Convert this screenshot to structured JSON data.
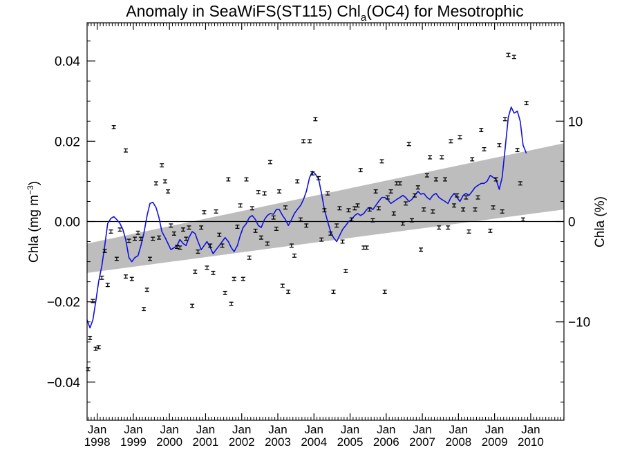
{
  "chart_data": {
    "type": "scatter",
    "title_main": "Anomaly in SeaWiFS(ST115) Chl",
    "title_sub": "a",
    "title_tail": "(OC4) for Mesotrophic",
    "ylabel_left_main": "Chla (mg m",
    "ylabel_left_sup": "−3",
    "ylabel_left_close": ")",
    "ylabel_right": "Chla (%)",
    "xlim": [
      1997.72,
      2010.92
    ],
    "ylim": [
      -0.0495,
      0.0495
    ],
    "ylim_right": [
      -19.8,
      19.8
    ],
    "x_ticks": [
      {
        "month": "Jan",
        "year": "1998",
        "x": 1998.0
      },
      {
        "month": "Jan",
        "year": "1999",
        "x": 1999.0
      },
      {
        "month": "Jan",
        "year": "2000",
        "x": 2000.0
      },
      {
        "month": "Jan",
        "year": "2001",
        "x": 2001.0
      },
      {
        "month": "Jan",
        "year": "2002",
        "x": 2002.0
      },
      {
        "month": "Jan",
        "year": "2003",
        "x": 2003.0
      },
      {
        "month": "Jan",
        "year": "2004",
        "x": 2004.0
      },
      {
        "month": "Jan",
        "year": "2005",
        "x": 2005.0
      },
      {
        "month": "Jan",
        "year": "2006",
        "x": 2006.0
      },
      {
        "month": "Jan",
        "year": "2007",
        "x": 2007.0
      },
      {
        "month": "Jan",
        "year": "2008",
        "x": 2008.0
      },
      {
        "month": "Jan",
        "year": "2009",
        "x": 2009.0
      },
      {
        "month": "Jan",
        "year": "2010",
        "x": 2010.0
      }
    ],
    "y_ticks": [
      {
        "label": "−0.04",
        "y": -0.04
      },
      {
        "label": "−0.02",
        "y": -0.02
      },
      {
        "label": "0.00",
        "y": 0.0
      },
      {
        "label": "0.02",
        "y": 0.02
      },
      {
        "label": "0.04",
        "y": 0.04
      }
    ],
    "y_ticks_right": [
      {
        "label": "−10",
        "y": -10
      },
      {
        "label": "0",
        "y": 0
      },
      {
        "label": "10",
        "y": 10
      }
    ],
    "zero_line": 0.0,
    "trend_band": {
      "x": [
        1997.72,
        2010.92
      ],
      "lower": [
        -0.0128,
        0.003
      ],
      "upper": [
        -0.0055,
        0.0195
      ],
      "color": "#bdbdbd"
    },
    "points_color": "#000000",
    "points_error": 0.0004,
    "points": [
      [
        1997.75,
        -0.0368
      ],
      [
        1997.8,
        -0.029
      ],
      [
        1997.88,
        -0.0198
      ],
      [
        1997.96,
        -0.0317
      ],
      [
        1998.04,
        -0.0313
      ],
      [
        1998.13,
        -0.014
      ],
      [
        1998.21,
        -0.0073
      ],
      [
        1998.29,
        -0.0158
      ],
      [
        1998.38,
        -0.0025
      ],
      [
        1998.46,
        0.0235
      ],
      [
        1998.54,
        -0.0093
      ],
      [
        1998.63,
        -0.002
      ],
      [
        1998.79,
        0.0177
      ],
      [
        1998.79,
        -0.0137
      ],
      [
        1998.88,
        -0.0048
      ],
      [
        1998.96,
        -0.0143
      ],
      [
        1999.04,
        -0.0043
      ],
      [
        1999.13,
        -0.0028
      ],
      [
        1999.21,
        -0.0043
      ],
      [
        1999.29,
        -0.0218
      ],
      [
        1999.38,
        -0.017
      ],
      [
        1999.46,
        -0.0093
      ],
      [
        1999.54,
        -0.0043
      ],
      [
        1999.63,
        0.0095
      ],
      [
        1999.71,
        -0.004
      ],
      [
        1999.79,
        0.014
      ],
      [
        1999.88,
        0.01
      ],
      [
        1999.96,
        0.0075
      ],
      [
        2000.04,
        -0.001
      ],
      [
        2000.13,
        -0.003
      ],
      [
        2000.21,
        -0.0063
      ],
      [
        2000.29,
        -0.0065
      ],
      [
        2000.38,
        -0.002
      ],
      [
        2000.46,
        -0.0043
      ],
      [
        2000.54,
        -0.0015
      ],
      [
        2000.63,
        -0.021
      ],
      [
        2000.71,
        -0.0125
      ],
      [
        2000.79,
        -0.0075
      ],
      [
        2000.88,
        -0.0015
      ],
      [
        2000.96,
        0.0023
      ],
      [
        2001.04,
        -0.0115
      ],
      [
        2001.13,
        -0.006
      ],
      [
        2001.21,
        -0.0128
      ],
      [
        2001.29,
        0.0025
      ],
      [
        2001.38,
        -0.0033
      ],
      [
        2001.46,
        -0.006
      ],
      [
        2001.54,
        -0.0178
      ],
      [
        2001.63,
        0.0105
      ],
      [
        2001.71,
        -0.0205
      ],
      [
        2001.79,
        -0.0143
      ],
      [
        2001.88,
        -0.0013
      ],
      [
        2001.96,
        0.004
      ],
      [
        2002.04,
        -0.0143
      ],
      [
        2002.13,
        0.0105
      ],
      [
        2002.21,
        -0.009
      ],
      [
        2002.29,
        0.0033
      ],
      [
        2002.38,
        -0.0023
      ],
      [
        2002.46,
        0.0073
      ],
      [
        2002.54,
        -0.004
      ],
      [
        2002.63,
        0.007
      ],
      [
        2002.71,
        -0.0055
      ],
      [
        2002.79,
        0.0148
      ],
      [
        2002.88,
        0.001
      ],
      [
        2002.96,
        -0.0018
      ],
      [
        2003.04,
        0.0075
      ],
      [
        2003.13,
        -0.016
      ],
      [
        2003.21,
        0.0035
      ],
      [
        2003.29,
        -0.0175
      ],
      [
        2003.38,
        -0.006
      ],
      [
        2003.46,
        -0.0085
      ],
      [
        2003.54,
        0.01
      ],
      [
        2003.63,
        0.0005
      ],
      [
        2003.71,
        0.02
      ],
      [
        2003.79,
        -0.001
      ],
      [
        2003.88,
        0.02
      ],
      [
        2003.96,
        0.012
      ],
      [
        2004.04,
        0.0255
      ],
      [
        2004.13,
        0.0108
      ],
      [
        2004.21,
        -0.0045
      ],
      [
        2004.29,
        0.0028
      ],
      [
        2004.38,
        0.007
      ],
      [
        2004.46,
        -0.003
      ],
      [
        2004.54,
        -0.0175
      ],
      [
        2004.63,
        -0.001
      ],
      [
        2004.71,
        0.0033
      ],
      [
        2004.79,
        -0.005
      ],
      [
        2004.88,
        -0.0123
      ],
      [
        2004.96,
        0.0028
      ],
      [
        2005.04,
        0.0005
      ],
      [
        2005.13,
        0.0033
      ],
      [
        2005.21,
        0.004
      ],
      [
        2005.29,
        0.0128
      ],
      [
        2005.38,
        -0.0065
      ],
      [
        2005.46,
        -0.0065
      ],
      [
        2005.54,
        0.003
      ],
      [
        2005.63,
        0.0003
      ],
      [
        2005.71,
        0.0075
      ],
      [
        2005.79,
        0.0033
      ],
      [
        2005.88,
        0.015
      ],
      [
        2005.96,
        -0.0175
      ],
      [
        2006.04,
        0.006
      ],
      [
        2006.13,
        0.0075
      ],
      [
        2006.21,
        0.002
      ],
      [
        2006.29,
        0.0095
      ],
      [
        2006.38,
        0.0095
      ],
      [
        2006.46,
        -0.0005
      ],
      [
        2006.54,
        0.0045
      ],
      [
        2006.63,
        0.0193
      ],
      [
        2006.71,
        0.0003
      ],
      [
        2006.79,
        0.0065
      ],
      [
        2006.88,
        0.0085
      ],
      [
        2006.96,
        -0.007
      ],
      [
        2007.04,
        0.003
      ],
      [
        2007.13,
        0.0115
      ],
      [
        2007.21,
        0.016
      ],
      [
        2007.29,
        0.0025
      ],
      [
        2007.38,
        0.0105
      ],
      [
        2007.46,
        -0.0015
      ],
      [
        2007.54,
        0.016
      ],
      [
        2007.63,
        0.0105
      ],
      [
        2007.71,
        -0.0015
      ],
      [
        2007.79,
        0.02
      ],
      [
        2007.88,
        0.004
      ],
      [
        2007.96,
        0.0065
      ],
      [
        2008.04,
        0.021
      ],
      [
        2008.13,
        0.003
      ],
      [
        2008.21,
        0.006
      ],
      [
        2008.29,
        -0.0025
      ],
      [
        2008.38,
        0.0155
      ],
      [
        2008.46,
        0.003
      ],
      [
        2008.54,
        0.006
      ],
      [
        2008.63,
        0.0228
      ],
      [
        2008.71,
        0.018
      ],
      [
        2008.88,
        -0.0023
      ],
      [
        2008.96,
        0.0035
      ],
      [
        2009.04,
        0.0105
      ],
      [
        2009.13,
        0.019
      ],
      [
        2009.21,
        0.0025
      ],
      [
        2009.29,
        0.0255
      ],
      [
        2009.38,
        0.0415
      ],
      [
        2009.54,
        0.041
      ],
      [
        2009.63,
        0.0178
      ],
      [
        2009.71,
        0.0095
      ],
      [
        2009.79,
        0.0005
      ],
      [
        2009.88,
        0.0295
      ]
    ],
    "series": [
      {
        "color": "#1010dd",
        "x": [
          1997.72,
          1997.8,
          1997.88,
          1997.96,
          1998.04,
          1998.13,
          1998.21,
          1998.29,
          1998.38,
          1998.46,
          1998.54,
          1998.63,
          1998.71,
          1998.79,
          1998.88,
          1998.96,
          1999.04,
          1999.13,
          1999.21,
          1999.29,
          1999.38,
          1999.46,
          1999.54,
          1999.63,
          1999.71,
          1999.79,
          1999.88,
          1999.96,
          2000.04,
          2000.13,
          2000.21,
          2000.29,
          2000.38,
          2000.46,
          2000.54,
          2000.63,
          2000.71,
          2000.79,
          2000.88,
          2000.96,
          2001.04,
          2001.13,
          2001.21,
          2001.29,
          2001.38,
          2001.46,
          2001.54,
          2001.63,
          2001.71,
          2001.79,
          2001.88,
          2001.96,
          2002.04,
          2002.13,
          2002.21,
          2002.29,
          2002.38,
          2002.46,
          2002.54,
          2002.63,
          2002.71,
          2002.79,
          2002.88,
          2002.96,
          2003.04,
          2003.13,
          2003.21,
          2003.29,
          2003.38,
          2003.46,
          2003.54,
          2003.63,
          2003.71,
          2003.79,
          2003.88,
          2003.96,
          2004.04,
          2004.13,
          2004.21,
          2004.29,
          2004.38,
          2004.46,
          2004.54,
          2004.63,
          2004.71,
          2004.79,
          2004.88,
          2004.96,
          2005.04,
          2005.13,
          2005.21,
          2005.29,
          2005.38,
          2005.46,
          2005.54,
          2005.63,
          2005.71,
          2005.79,
          2005.88,
          2005.96,
          2006.04,
          2006.13,
          2006.21,
          2006.29,
          2006.38,
          2006.46,
          2006.54,
          2006.63,
          2006.71,
          2006.79,
          2006.88,
          2006.96,
          2007.04,
          2007.13,
          2007.21,
          2007.29,
          2007.38,
          2007.46,
          2007.54,
          2007.63,
          2007.71,
          2007.79,
          2007.88,
          2007.96,
          2008.04,
          2008.13,
          2008.21,
          2008.29,
          2008.38,
          2008.46,
          2008.54,
          2008.63,
          2008.71,
          2008.79,
          2008.88,
          2008.96,
          2009.04,
          2009.13,
          2009.21,
          2009.29,
          2009.38,
          2009.46,
          2009.54,
          2009.63,
          2009.71,
          2009.79,
          2009.88
        ],
        "y": [
          -0.0245,
          -0.0265,
          -0.0245,
          -0.02,
          -0.015,
          -0.011,
          -0.006,
          -0.0005,
          0.0008,
          0.0012,
          0.0005,
          -0.0005,
          -0.002,
          -0.0045,
          -0.009,
          -0.01,
          -0.009,
          -0.0085,
          -0.006,
          -0.003,
          0.0015,
          0.0045,
          0.0048,
          0.0035,
          0.001,
          -0.0025,
          -0.004,
          -0.0055,
          -0.007,
          -0.0065,
          -0.006,
          -0.0045,
          -0.0055,
          -0.006,
          -0.004,
          -0.0025,
          -0.003,
          -0.005,
          -0.007,
          -0.006,
          -0.005,
          -0.0065,
          -0.008,
          -0.007,
          -0.006,
          -0.005,
          -0.004,
          -0.005,
          -0.0065,
          -0.0075,
          -0.006,
          -0.0035,
          -0.0015,
          -0.0005,
          0.001,
          0.0015,
          0.0005,
          -0.001,
          -0.0015,
          0.0005,
          0.0015,
          0.002,
          0.0018,
          0.003,
          0.003,
          0.0015,
          0.0005,
          -0.001,
          0.0005,
          0.002,
          0.003,
          0.004,
          0.0055,
          0.0075,
          0.011,
          0.0125,
          0.0118,
          0.0105,
          0.007,
          0.003,
          0.0,
          -0.0025,
          -0.004,
          -0.005,
          -0.0035,
          -0.002,
          -0.001,
          0.0,
          0.0005,
          0.0015,
          0.002,
          0.0015,
          0.002,
          0.003,
          0.0035,
          0.003,
          0.004,
          0.005,
          0.006,
          0.006,
          0.0055,
          0.0045,
          0.005,
          0.0055,
          0.006,
          0.0065,
          0.006,
          0.005,
          0.0055,
          0.0065,
          0.0075,
          0.0068,
          0.007,
          0.006,
          0.0055,
          0.0065,
          0.007,
          0.006,
          0.0055,
          0.005,
          0.0045,
          0.006,
          0.007,
          0.006,
          0.005,
          0.0065,
          0.007,
          0.0065,
          0.0075,
          0.0085,
          0.009,
          0.0095,
          0.0095,
          0.01,
          0.0115,
          0.011,
          0.0105,
          0.008,
          0.011,
          0.018,
          0.026,
          0.0285,
          0.027,
          0.0275,
          0.025,
          0.019,
          0.017
        ]
      }
    ]
  }
}
